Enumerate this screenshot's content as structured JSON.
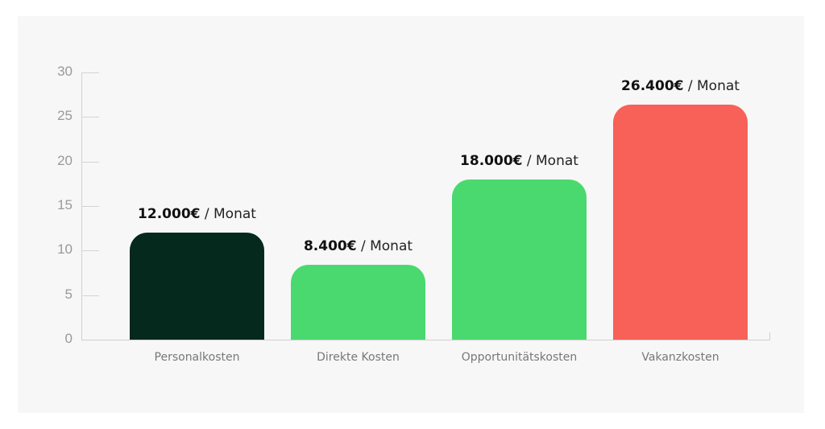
{
  "chart_data": {
    "type": "bar",
    "title": "",
    "xlabel": "",
    "ylabel": "",
    "ylim": [
      0,
      30
    ],
    "yticks": [
      0,
      5,
      10,
      15,
      20,
      25,
      30
    ],
    "grid": false,
    "legend": null,
    "categories": [
      "Personalkosten",
      "Direkte Kosten",
      "Opportunitätskosten",
      "Vakanzkosten"
    ],
    "values": [
      12.0,
      8.4,
      18.0,
      26.4
    ],
    "value_labels": [
      {
        "amount": "12.000€",
        "unit": " / Monat"
      },
      {
        "amount": "8.400€",
        "unit": " / Monat"
      },
      {
        "amount": "18.000€",
        "unit": " / Monat"
      },
      {
        "amount": "26.400€",
        "unit": " / Monat"
      }
    ],
    "colors": [
      "#05291c",
      "#4ad96e",
      "#4ad96e",
      "#f76157"
    ]
  },
  "axis": {
    "tick_labels": [
      "0",
      "5",
      "10",
      "15",
      "20",
      "25",
      "30"
    ]
  },
  "colors": {
    "panel_bg": "#f7f7f7",
    "axis": "#d0d0d0",
    "tick_text": "#999999"
  }
}
